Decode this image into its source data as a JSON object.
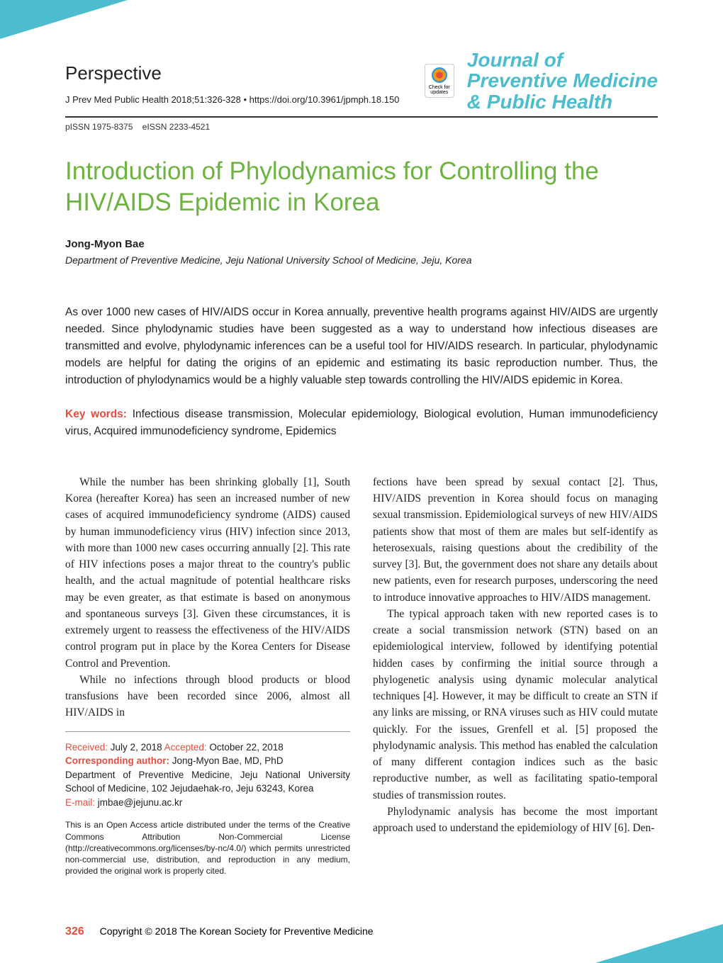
{
  "header": {
    "articleType": "Perspective",
    "citation": "J Prev Med Public Health 2018;51:326-328   •  https://doi.org/10.3961/jpmph.18.150",
    "pissn": "pISSN 1975-8375",
    "eissn": "eISSN 2233-4521"
  },
  "journal": {
    "line1": "Journal of",
    "line2": "Preventive Medicine",
    "line3": "& Public Health"
  },
  "crossmark": "Check for updates",
  "title": "Introduction of Phylodynamics for Controlling the HIV/AIDS Epidemic in Korea",
  "author": "Jong-Myon Bae",
  "affiliation": "Department of Preventive Medicine, Jeju National University School of Medicine, Jeju, Korea",
  "abstract": "As over 1000 new cases of HIV/AIDS occur in Korea annually, preventive health programs against HIV/AIDS are urgently needed. Since phylodynamic studies have been suggested as a way to understand how infectious diseases are transmitted and evolve, phylodynamic inferences can be a useful tool for HIV/AIDS research. In particular, phylodynamic models are helpful for dating the origins of an epidemic and estimating its basic reproduction number. Thus, the introduction of phylodynamics would be a highly valuable step towards controlling the HIV/AIDS epidemic in Korea.",
  "keywords": {
    "label": "Key words:",
    "text": " Infectious disease transmission, Molecular epidemiology, Biological evolution, Human immunodeficiency virus, Acquired immunodeficiency syndrome, Epidemics"
  },
  "body": {
    "p1": "While the number has been shrinking globally [1], South Korea (hereafter Korea) has seen an increased number of new cases of acquired immunodeficiency syndrome (AIDS) caused by human immunodeficiency virus (HIV) infection since 2013, with more than 1000 new cases occurring annually [2]. This rate of HIV infections poses a major threat to the country's public health, and the actual magnitude of potential healthcare risks may be even greater, as that estimate is based on anonymous and spontaneous surveys [3]. Given these circumstances, it is extremely urgent to reassess the effectiveness of the HIV/AIDS control program put in place by the Korea Centers for Disease Control and Prevention.",
    "p2": "While no infections through blood products or blood transfusions have been recorded since 2006, almost all HIV/AIDS in",
    "p2b": "fections have been spread by sexual contact [2]. Thus, HIV/AIDS prevention in Korea should focus on managing sexual transmission. Epidemiological surveys of new HIV/AIDS patients show that most of them are males but self-identify as heterosexuals, raising questions about the credibility of the survey [3]. But, the government does not share any details about new patients, even for research purposes, underscoring the need to introduce innovative approaches to HIV/AIDS management.",
    "p3": "The typical approach taken with new reported cases is to create a social transmission network (STN) based on an epidemiological interview, followed by identifying potential hidden cases by confirming the initial source through a phylogenetic analysis using dynamic molecular analytical techniques [4]. However, it may be difficult to create an STN if any links are missing, or RNA viruses such as HIV could mutate quickly. For the issues, Grenfell et al. [5] proposed the phylodynamic analysis. This method has enabled the calculation of many different contagion indices such as the basic reproductive number, as well as facilitating spatio-temporal studies of transmission routes.",
    "p4": "Phylodynamic analysis has become the most important approach used to understand the epidemiology of HIV [6]. Den-"
  },
  "info": {
    "receivedLabel": "Received:",
    "receivedDate": " July 2, 2018 ",
    "acceptedLabel": "Accepted:",
    "acceptedDate": " October 22, 2018",
    "corrLabel": "Corresponding author:",
    "corrName": " Jong-Myon Bae, MD, PhD",
    "corrAddr": "Department of Preventive Medicine, Jeju National University School of Medicine, 102 Jejudaehak-ro, Jeju 63243, Korea",
    "emailLabel": "E-mail:",
    "email": " jmbae@jejunu.ac.kr",
    "license": "This is an Open Access article distributed under the terms of the Creative Commons Attribution Non-Commercial License (http://creativecommons.org/licenses/by-nc/4.0/) which permits unrestricted non-commercial use, distribution, and reproduction in any medium, provided the original work is properly cited."
  },
  "footer": {
    "pageNum": "326",
    "copyright": "Copyright © 2018  The Korean Society for Preventive Medicine"
  },
  "colors": {
    "accent": "#4bbdce",
    "green": "#6db33f",
    "red": "#e74c3c"
  }
}
